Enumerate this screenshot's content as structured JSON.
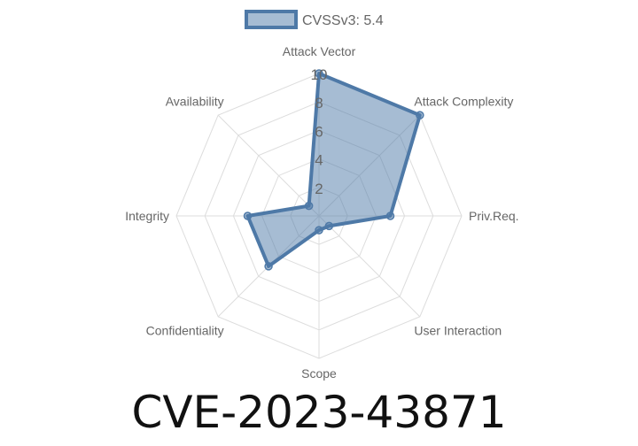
{
  "chart_data": {
    "type": "radar",
    "categories": [
      "Attack Vector",
      "Attack Complexity",
      "Priv.Req.",
      "User Interaction",
      "Scope",
      "Confidentiality",
      "Integrity",
      "Availability"
    ],
    "series": [
      {
        "name": "CVSSv3: 5.4",
        "values": [
          10,
          10,
          5,
          1,
          1,
          5,
          5,
          1
        ]
      }
    ],
    "rlim": [
      0,
      10
    ],
    "ticks": [
      "2",
      "4",
      "6",
      "8",
      "10"
    ],
    "grid": true,
    "legend": "top",
    "colors": {
      "line": "#4e79a7",
      "fill": "rgba(78,121,167,0.5)"
    }
  },
  "footer": {
    "title": "CVE-2023-43871"
  }
}
